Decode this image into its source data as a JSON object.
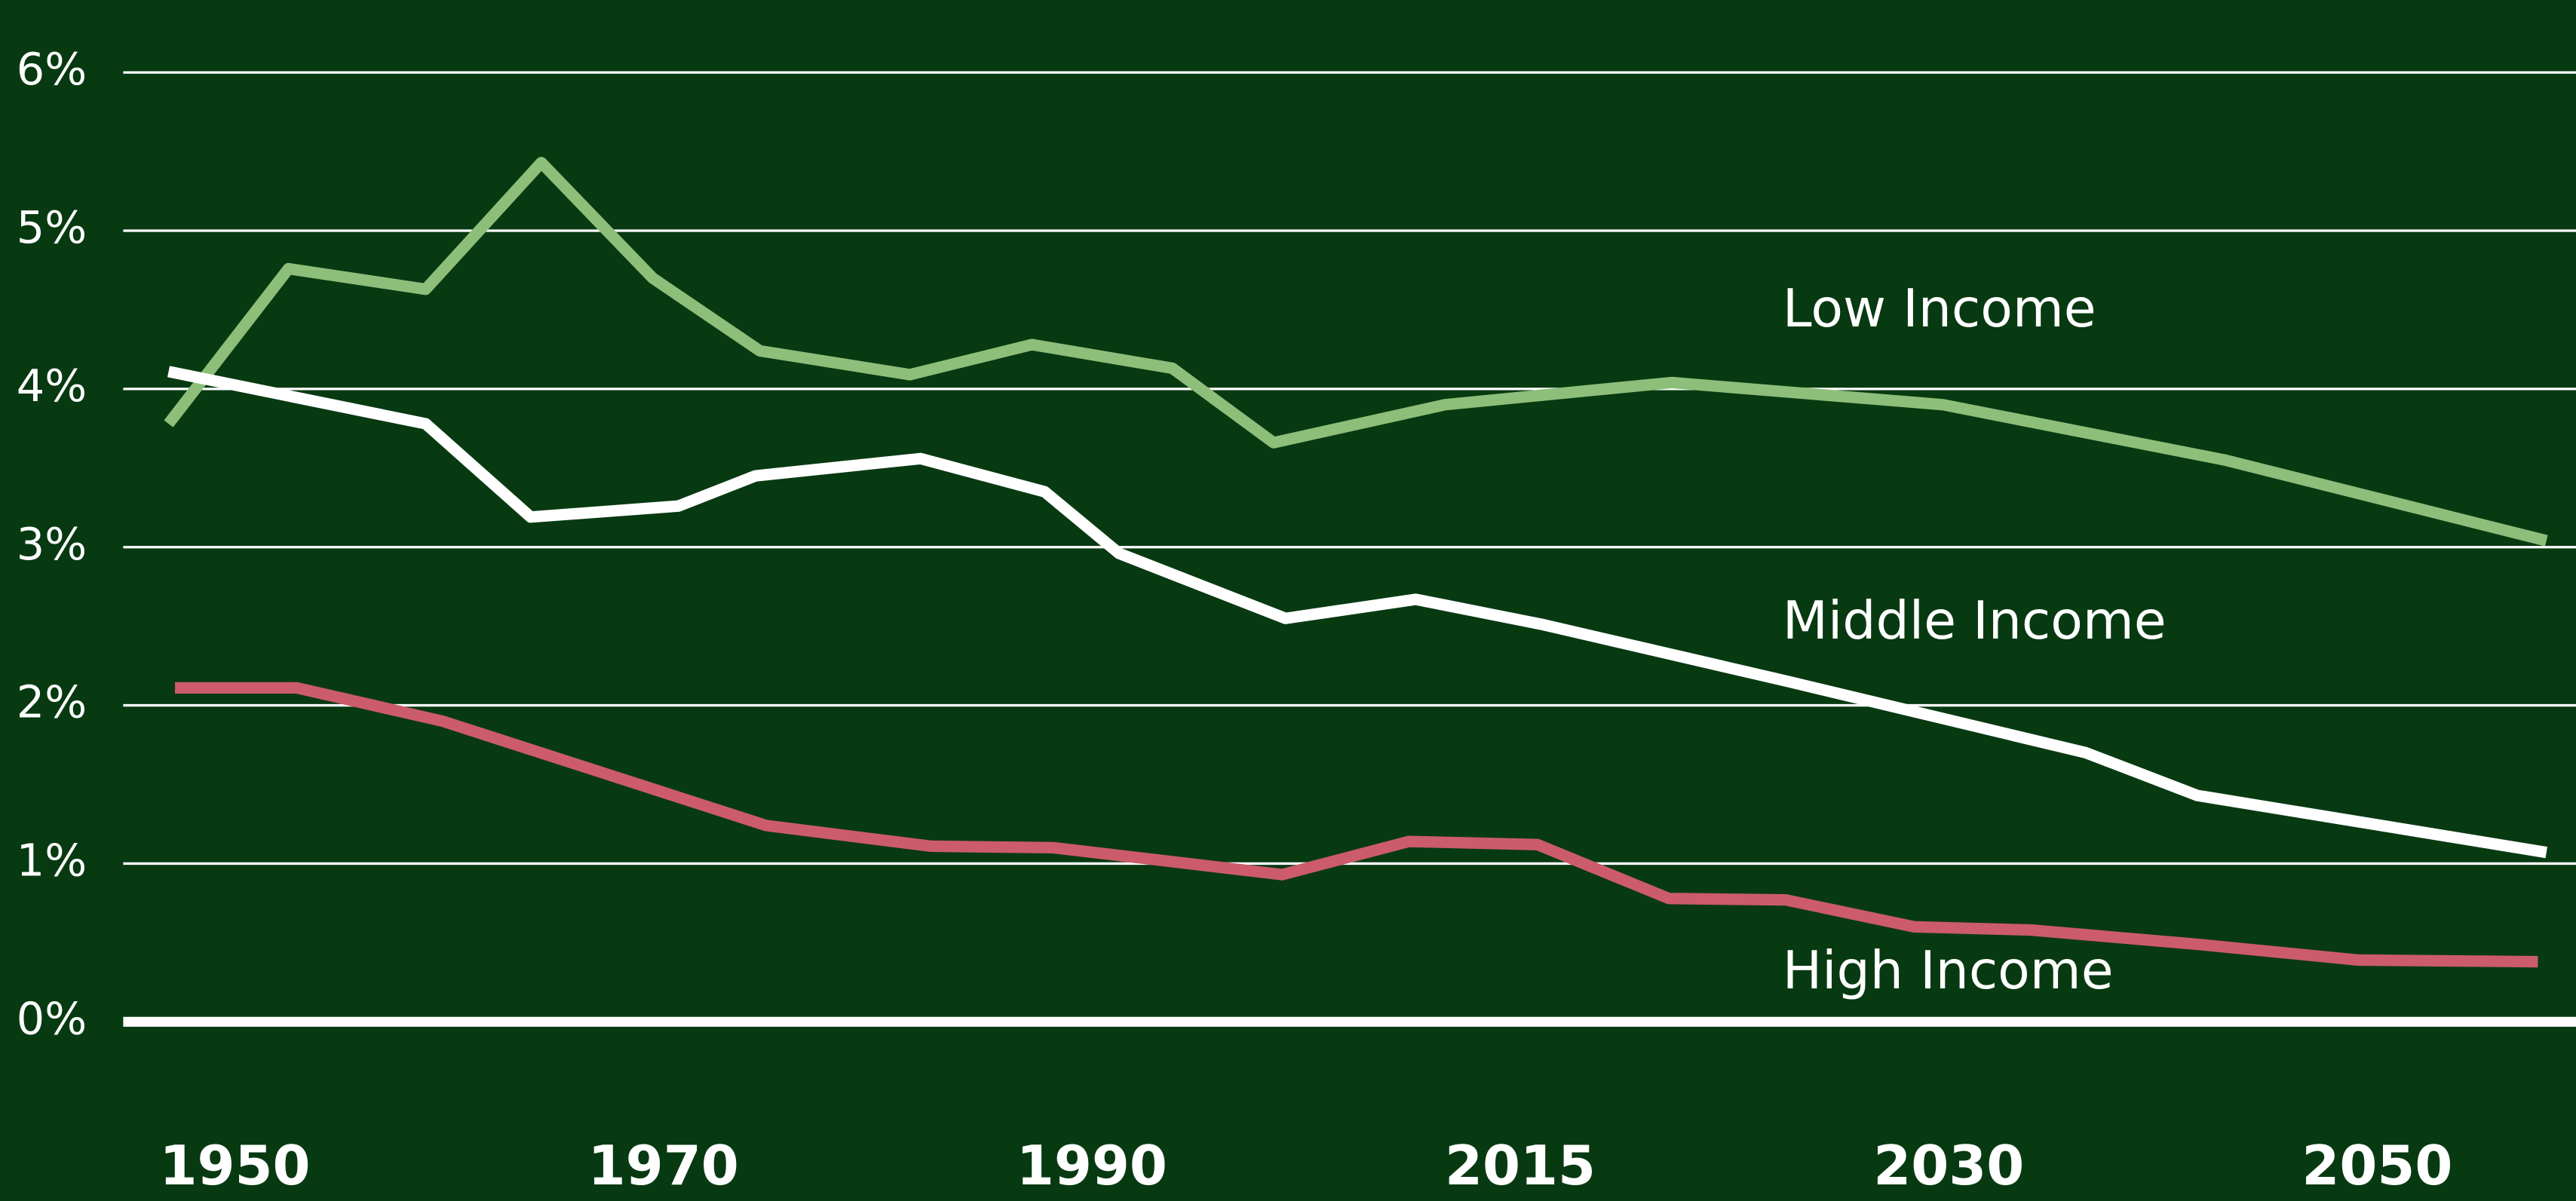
{
  "chart_data": {
    "type": "line",
    "xlim": [
      1944.8,
      2059.3
    ],
    "xticks": [
      1950,
      1970,
      1990,
      2015,
      2030,
      2050
    ],
    "ylim": [
      0,
      6
    ],
    "yticks": [
      {
        "value": 0,
        "label": "0%"
      },
      {
        "value": 1,
        "label": "1%"
      },
      {
        "value": 2,
        "label": "2%"
      },
      {
        "value": 3,
        "label": "3%"
      },
      {
        "value": 4,
        "label": "4%"
      },
      {
        "value": 5,
        "label": "5%"
      },
      {
        "value": 6,
        "label": "6%"
      }
    ],
    "grid": true,
    "series": [
      {
        "name": "Low Income",
        "color": "#8dbf7a",
        "x": [
          1946.9,
          1952.5,
          1958.9,
          1964.3,
          1969.5,
          1974.5,
          1981.5,
          1987.2,
          1994.7,
          2000.6,
          2010.6,
          2020.3,
          2029.8,
          2042.9,
          2057.9
        ],
        "values": [
          3.78,
          4.76,
          4.63,
          5.43,
          4.7,
          4.24,
          4.09,
          4.28,
          4.13,
          3.66,
          3.9,
          4.04,
          3.9,
          3.55,
          3.04
        ]
      },
      {
        "name": "Middle Income",
        "color": "#ffffff",
        "x": [
          1946.9,
          1958.9,
          1963.8,
          1970.7,
          1974.3,
          1982.0,
          1987.8,
          1991.6,
          2001.3,
          2008.9,
          2015.8,
          2024.4,
          2036.4,
          2041.6,
          2057.9
        ],
        "values": [
          4.11,
          3.78,
          3.19,
          3.26,
          3.45,
          3.56,
          3.35,
          2.96,
          2.55,
          2.67,
          2.51,
          2.15,
          1.7,
          1.43,
          1.07
        ]
      },
      {
        "name": "High Income",
        "color": "#cc5b6b",
        "x": [
          1947.2,
          1952.9,
          1959.7,
          1974.8,
          1982.5,
          1988.2,
          2001.1,
          2008.5,
          2015.6,
          2020.2,
          2024.3,
          2028.8,
          2033.8,
          2041.6,
          2049.1,
          2057.5
        ],
        "values": [
          2.11,
          2.11,
          1.9,
          1.24,
          1.11,
          1.1,
          0.93,
          1.14,
          1.12,
          0.78,
          0.77,
          0.6,
          0.58,
          0.49,
          0.39,
          0.38
        ]
      }
    ]
  }
}
